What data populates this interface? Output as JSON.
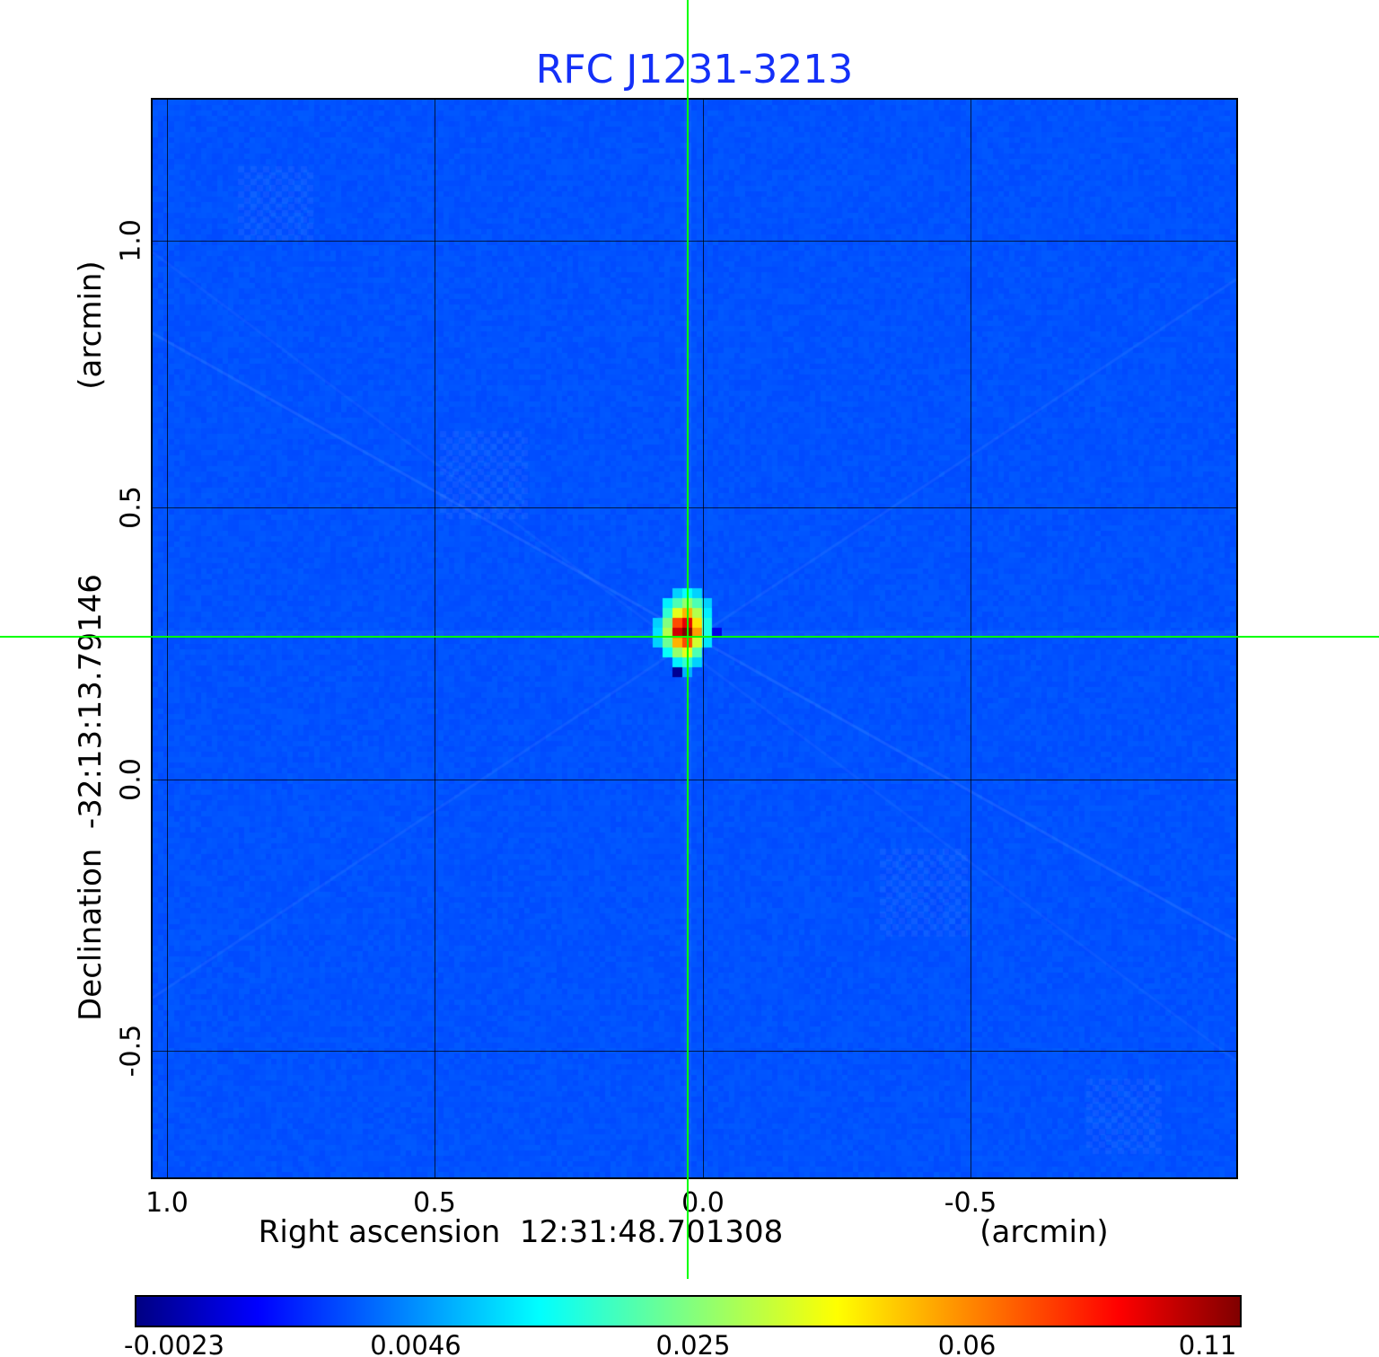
{
  "chart_data": {
    "type": "heatmap",
    "title": "RFC J1231-3213",
    "xlabel": "Right ascension  12:31:48.701308",
    "xunit": "(arcmin)",
    "ylabel": "Declination  -32:13:13.79146",
    "yunit": "(arcmin)",
    "x_ticks": [
      "1.0",
      "0.5",
      "0.0",
      "-0.5"
    ],
    "y_ticks": [
      "1.0",
      "0.5",
      "0.0",
      "-0.5"
    ],
    "x_range_arcmin": [
      1.03,
      -1.0
    ],
    "y_range_arcmin": [
      1.26,
      -0.73
    ],
    "grid": true,
    "colorbar_ticks": [
      "-0.0023",
      "0.0046",
      "0.025",
      "0.06",
      "0.11"
    ],
    "colorbar_min": -0.0023,
    "colorbar_max": 0.11,
    "colormap": "jet",
    "source": {
      "peak_value": 0.11,
      "x_offset_arcmin": 0.03,
      "y_offset_arcmin": 0.27
    },
    "colors": {
      "title": "#1430f8",
      "crosshair": "#00ff00",
      "grid": "#000000",
      "background_sky": "#0052ff"
    },
    "noise": {
      "base_t": 0.205,
      "amp_t": 0.016
    },
    "source_map": [
      [
        null,
        null,
        0.33,
        0.38,
        0.33,
        null,
        null
      ],
      [
        null,
        0.36,
        0.45,
        0.52,
        0.45,
        0.33,
        null
      ],
      [
        null,
        0.42,
        0.6,
        0.7,
        0.55,
        0.36,
        null
      ],
      [
        0.33,
        0.5,
        0.8,
        0.9,
        0.65,
        0.4,
        null
      ],
      [
        0.35,
        0.55,
        0.92,
        1.0,
        0.72,
        0.4,
        0.1
      ],
      [
        0.33,
        0.48,
        0.7,
        0.8,
        0.58,
        0.35,
        null
      ],
      [
        null,
        0.38,
        0.52,
        0.6,
        0.45,
        null,
        null
      ],
      [
        null,
        null,
        0.36,
        0.42,
        0.33,
        null,
        null
      ],
      [
        null,
        null,
        0.02,
        0.3,
        null,
        null,
        null
      ]
    ]
  }
}
